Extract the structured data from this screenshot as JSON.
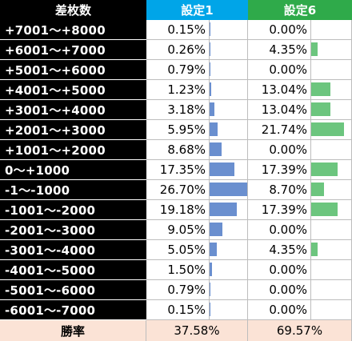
{
  "header": {
    "label": "差枚数",
    "setting1": "設定1",
    "setting6": "設定6"
  },
  "colors": {
    "setting1_header": "#00a5e8",
    "setting6_header": "#2faa4a",
    "setting1_bar": "#6a8fcf",
    "setting6_bar": "#6cc57e",
    "footer_bg": "#fbe3d6"
  },
  "chart_data": {
    "type": "table",
    "columns": [
      "差枚数",
      "設定1",
      "設定6"
    ],
    "rows": [
      {
        "label": "+7001～+8000",
        "s1": 0.15,
        "s6": 0.0,
        "s1_text": "0.15%",
        "s6_text": "0.00%"
      },
      {
        "label": "+6001～+7000",
        "s1": 0.26,
        "s6": 4.35,
        "s1_text": "0.26%",
        "s6_text": "4.35%"
      },
      {
        "label": "+5001～+6000",
        "s1": 0.79,
        "s6": 0.0,
        "s1_text": "0.79%",
        "s6_text": "0.00%"
      },
      {
        "label": "+4001～+5000",
        "s1": 1.23,
        "s6": 13.04,
        "s1_text": "1.23%",
        "s6_text": "13.04%"
      },
      {
        "label": "+3001～+4000",
        "s1": 3.18,
        "s6": 13.04,
        "s1_text": "3.18%",
        "s6_text": "13.04%"
      },
      {
        "label": "+2001～+3000",
        "s1": 5.95,
        "s6": 21.74,
        "s1_text": "5.95%",
        "s6_text": "21.74%"
      },
      {
        "label": "+1001～+2000",
        "s1": 8.68,
        "s6": 0.0,
        "s1_text": "8.68%",
        "s6_text": "0.00%"
      },
      {
        "label": "0～+1000",
        "s1": 17.35,
        "s6": 17.39,
        "s1_text": "17.35%",
        "s6_text": "17.39%"
      },
      {
        "label": "-1～-1000",
        "s1": 26.7,
        "s6": 8.7,
        "s1_text": "26.70%",
        "s6_text": "8.70%"
      },
      {
        "label": "-1001～-2000",
        "s1": 19.18,
        "s6": 17.39,
        "s1_text": "19.18%",
        "s6_text": "17.39%"
      },
      {
        "label": "-2001～-3000",
        "s1": 9.05,
        "s6": 0.0,
        "s1_text": "9.05%",
        "s6_text": "0.00%"
      },
      {
        "label": "-3001～-4000",
        "s1": 5.05,
        "s6": 4.35,
        "s1_text": "5.05%",
        "s6_text": "4.35%"
      },
      {
        "label": "-4001～-5000",
        "s1": 1.5,
        "s6": 0.0,
        "s1_text": "1.50%",
        "s6_text": "0.00%"
      },
      {
        "label": "-5001～-6000",
        "s1": 0.79,
        "s6": 0.0,
        "s1_text": "0.79%",
        "s6_text": "0.00%"
      },
      {
        "label": "-6001～-7000",
        "s1": 0.15,
        "s6": 0.0,
        "s1_text": "0.15%",
        "s6_text": "0.00%"
      }
    ],
    "bar_scale_max": 26.7,
    "footer": {
      "label": "勝率",
      "s1": "37.58%",
      "s6": "69.57%"
    }
  }
}
